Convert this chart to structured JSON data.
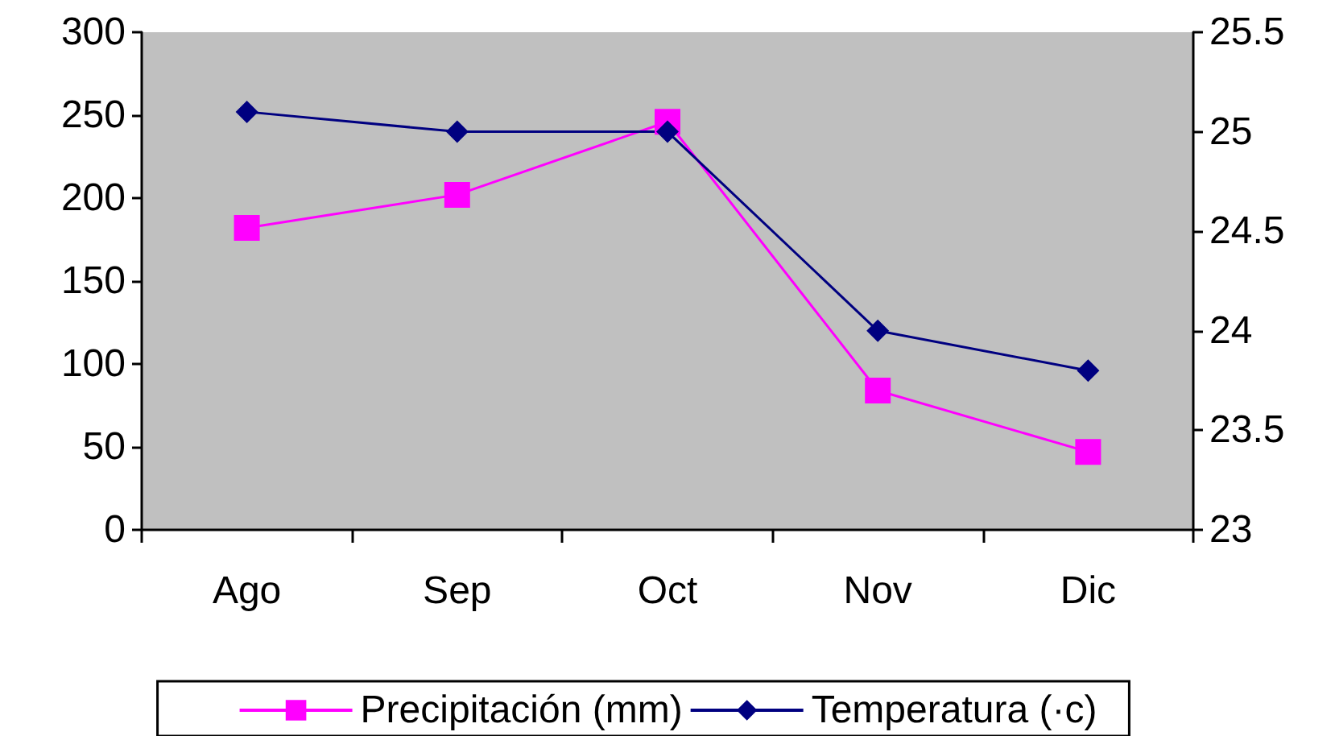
{
  "chart_data": {
    "type": "line",
    "categories": [
      "Ago",
      "Sep",
      "Oct",
      "Nov",
      "Dic"
    ],
    "series": [
      {
        "name": "Precipitación (mm)",
        "color": "#ff00ff",
        "values": [
          182,
          202,
          246,
          84,
          47
        ],
        "marker": "square"
      },
      {
        "name": "Temperatura (·c)",
        "color": "#000080",
        "values": [
          25.1,
          25.0,
          25.0,
          24.0,
          23.8
        ],
        "axis": "y2",
        "marker": "diamond"
      }
    ],
    "ylim": [
      0,
      300
    ],
    "yticks": [
      0,
      50,
      100,
      150,
      200,
      250,
      300
    ],
    "y2lim": [
      23,
      25.5
    ],
    "y2ticks": [
      23,
      23.5,
      24,
      24.5,
      25,
      25.5
    ],
    "grid": false,
    "legend": "bottom"
  }
}
